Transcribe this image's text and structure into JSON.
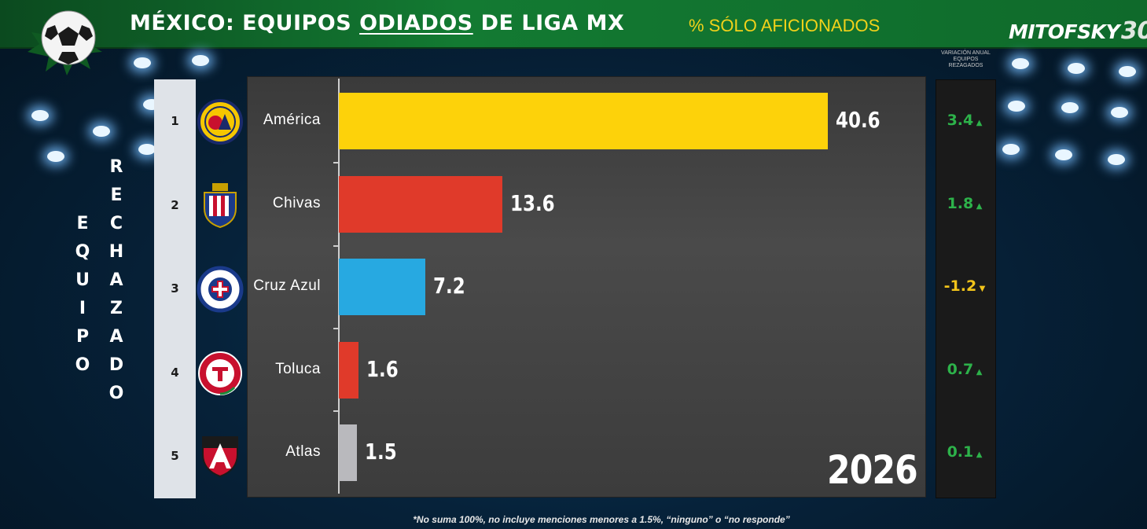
{
  "header": {
    "title_part1": "MÉXICO: EQUIPOS ",
    "title_underlined": "ODIADOS",
    "title_part2": " DE LIGA MX",
    "subtitle": "% SÓLO AFICIONADOS",
    "logo_text": "MITOFSKY",
    "logo_number": "30"
  },
  "side_label": {
    "line1": "EQUIPO",
    "line2": "RECHAZADO"
  },
  "variation_header": "VARIACIÓN ANUAL EQUIPOS REZAGADOS",
  "year": "2026",
  "footnote": "*No suma 100%, no incluye menciones menores a 1.5%, “ninguno” o “no responde”",
  "colors": {
    "up": "#2db24a",
    "down": "#f2c41a",
    "banner": "#137a32"
  },
  "chart_data": {
    "type": "bar",
    "orientation": "horizontal",
    "title": "MÉXICO: EQUIPOS ODIADOS DE LIGA MX",
    "subtitle": "% SÓLO AFICIONADOS",
    "xlim": [
      0,
      45
    ],
    "grid": false,
    "categories": [
      "América",
      "Chivas",
      "Cruz Azul",
      "Toluca",
      "Atlas"
    ],
    "ranks": [
      "1",
      "2",
      "3",
      "4",
      "5"
    ],
    "values": [
      40.6,
      13.6,
      7.2,
      1.6,
      1.5
    ],
    "value_labels": [
      "40.6",
      "13.6",
      "7.2",
      "1.6",
      "1.5"
    ],
    "bar_colors": [
      "#fdd20a",
      "#e03a2a",
      "#27a9e1",
      "#e03a2a",
      "#b9b9bd"
    ],
    "variation": [
      {
        "label": "3.4",
        "direction": "up"
      },
      {
        "label": "1.8",
        "direction": "up"
      },
      {
        "label": "-1.2",
        "direction": "down"
      },
      {
        "label": "0.7",
        "direction": "up"
      },
      {
        "label": "0.1",
        "direction": "up"
      }
    ]
  }
}
